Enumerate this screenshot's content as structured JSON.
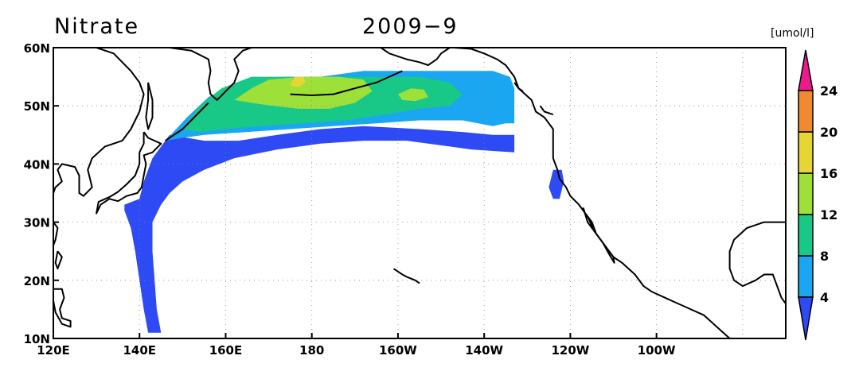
{
  "map": {
    "title_left": "Nitrate",
    "title_center": "2009−9",
    "units_label": "[umol/l]",
    "lon_range": [
      120,
      290
    ],
    "lat_range": [
      10,
      60
    ],
    "lon_ticks": [
      {
        "lon": 120,
        "label": "120E"
      },
      {
        "lon": 140,
        "label": "140E"
      },
      {
        "lon": 160,
        "label": "160E"
      },
      {
        "lon": 180,
        "label": "180"
      },
      {
        "lon": 200,
        "label": "160W"
      },
      {
        "lon": 220,
        "label": "140W"
      },
      {
        "lon": 240,
        "label": "120W"
      },
      {
        "lon": 260,
        "label": "100W"
      }
    ],
    "lat_ticks": [
      {
        "lat": 60,
        "label": "60N"
      },
      {
        "lat": 50,
        "label": "50N"
      },
      {
        "lat": 40,
        "label": "40N"
      },
      {
        "lat": 30,
        "label": "30N"
      },
      {
        "lat": 20,
        "label": "20N"
      },
      {
        "lat": 10,
        "label": "10N"
      }
    ],
    "colorbar": {
      "levels": [
        4,
        8,
        12,
        16,
        20,
        24
      ],
      "colors": [
        "#2e4af5",
        "#1aa6f0",
        "#18c886",
        "#9ee03a",
        "#e6d633",
        "#ef8a30",
        "#ec1b8c"
      ],
      "labels": [
        "4",
        "8",
        "12",
        "16",
        "20",
        "24"
      ]
    },
    "coast_color": "#000000"
  }
}
